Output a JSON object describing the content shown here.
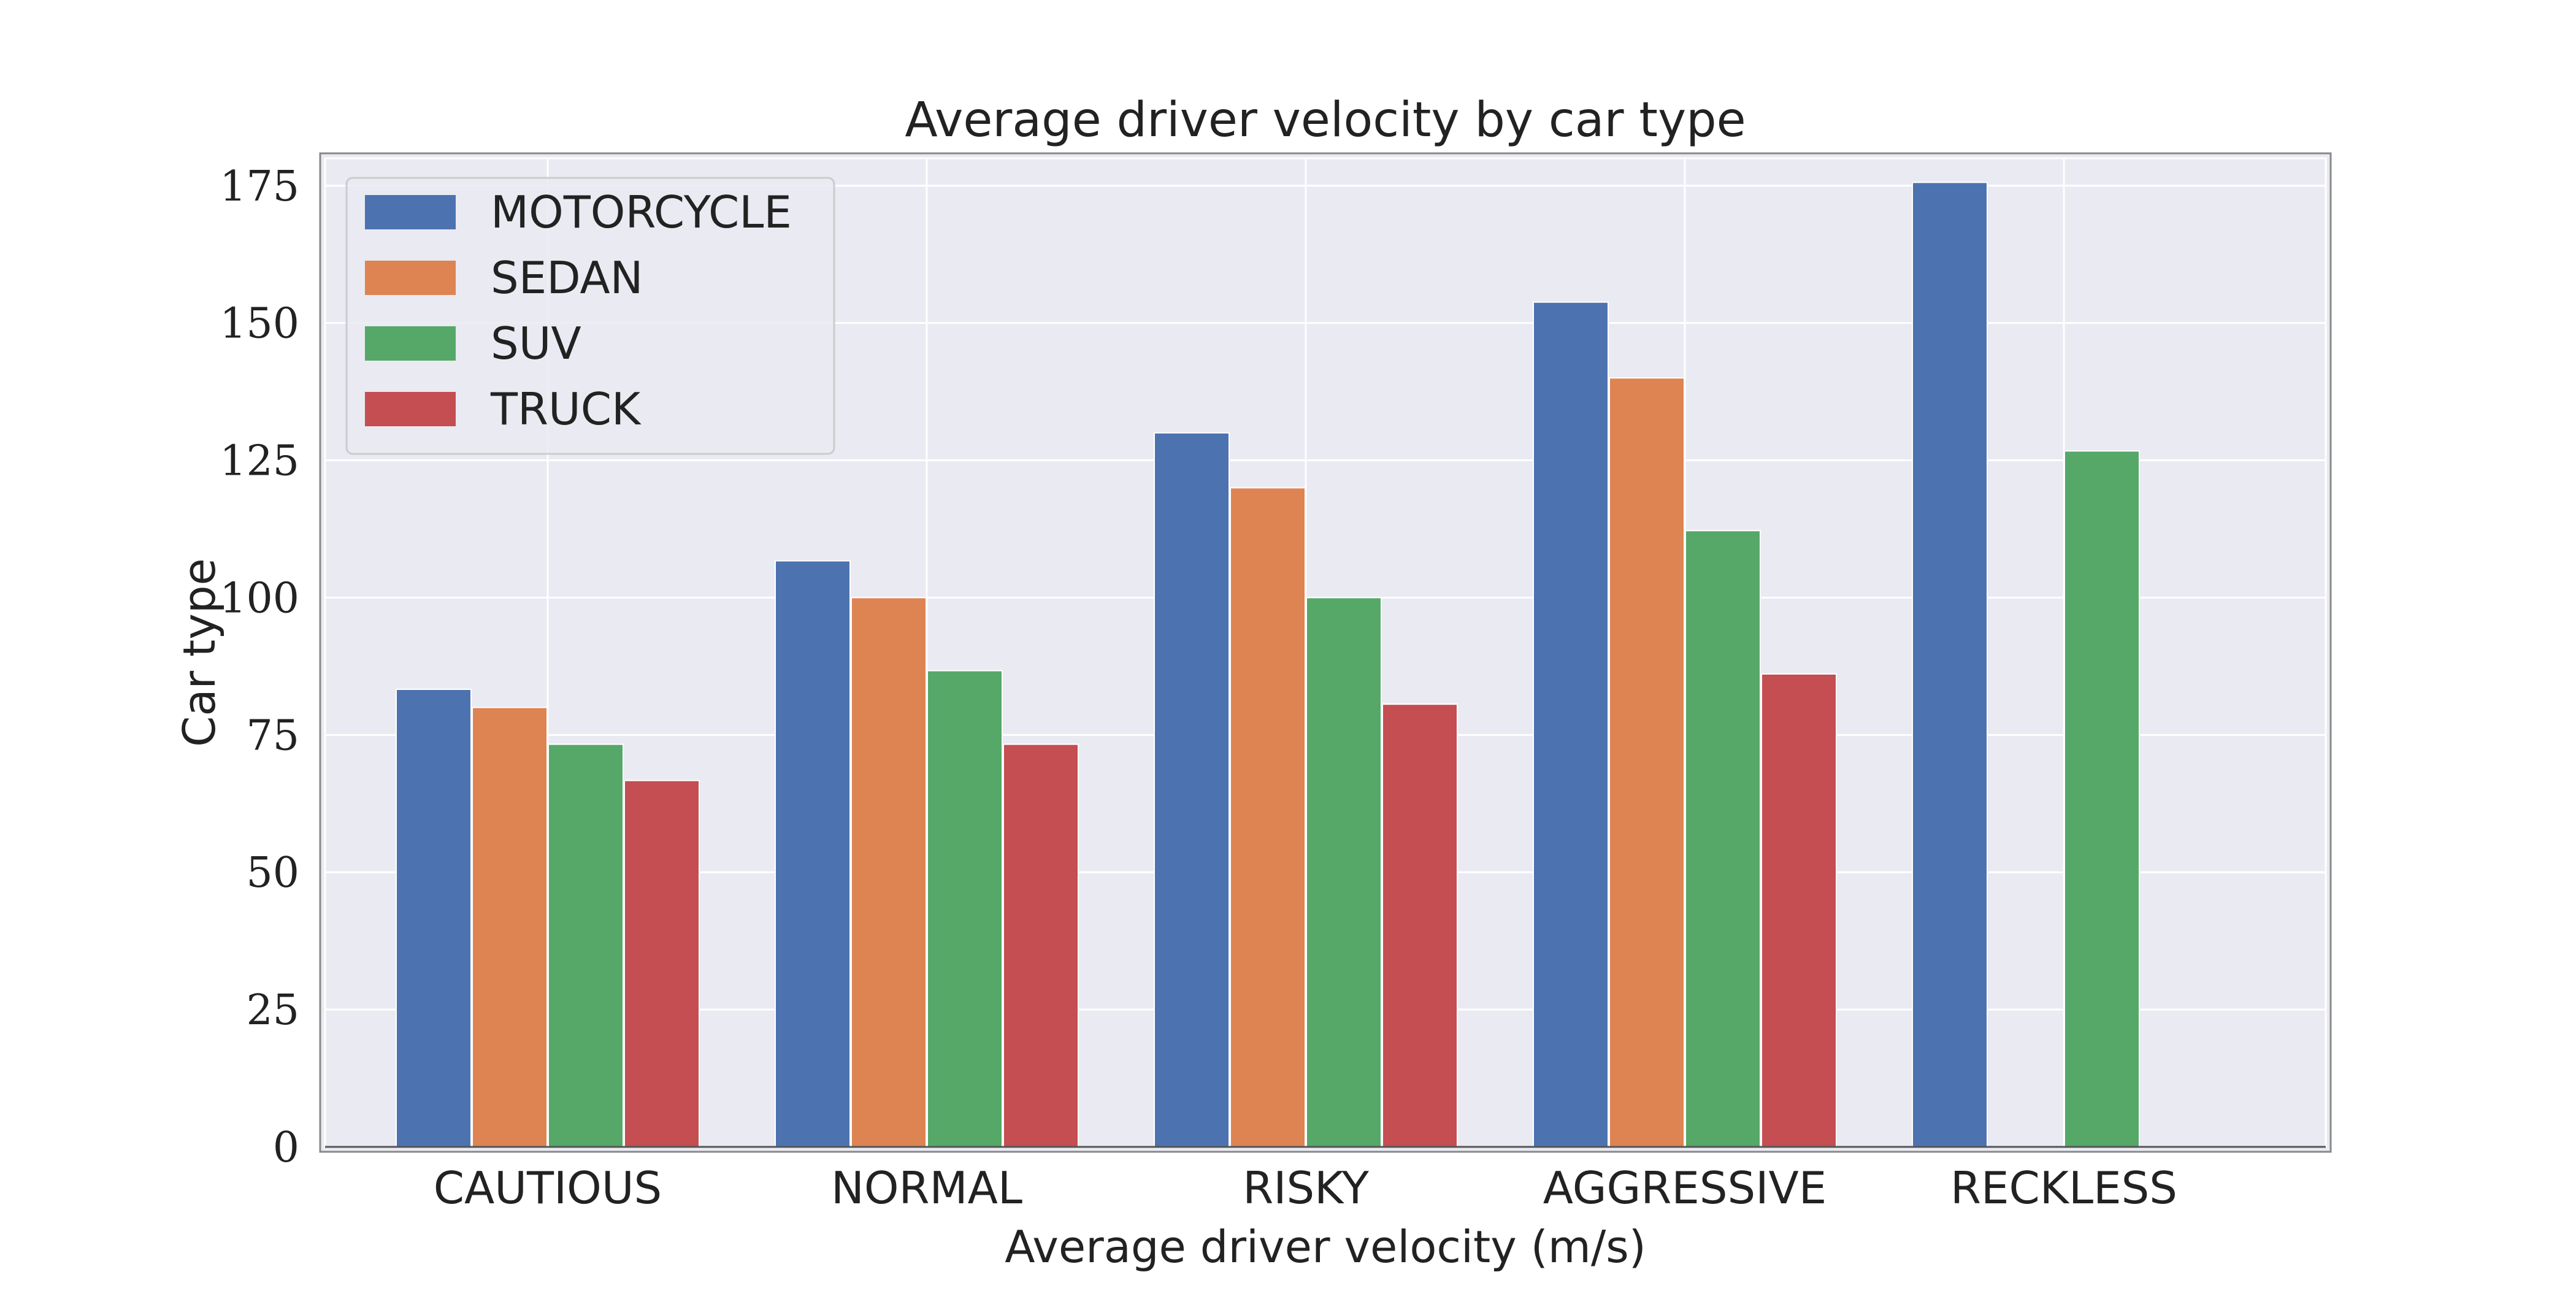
{
  "chart_data": {
    "type": "bar",
    "title": "Average driver velocity by car type",
    "xlabel": "Average driver velocity (m/s)",
    "ylabel": "Car type",
    "categories": [
      "CAUTIOUS",
      "NORMAL",
      "RISKY",
      "AGGRESSIVE",
      "RECKLESS"
    ],
    "series": [
      {
        "name": "MOTORCYCLE",
        "color": "#4c72b0",
        "values": [
          83.3,
          106.7,
          130,
          153.8,
          175.6
        ]
      },
      {
        "name": "SEDAN",
        "color": "#dd8452",
        "values": [
          80,
          100,
          120,
          140,
          null
        ]
      },
      {
        "name": "SUV",
        "color": "#55a868",
        "values": [
          73.3,
          86.7,
          100,
          112.2,
          126.7
        ]
      },
      {
        "name": "TRUCK",
        "color": "#c44e52",
        "values": [
          66.7,
          73.3,
          80.6,
          86.1,
          null
        ]
      }
    ],
    "ylim": [
      0,
      180
    ],
    "yticks": [
      0,
      25,
      50,
      75,
      100,
      125,
      150,
      175
    ],
    "grid": true,
    "legend_position": "upper-left",
    "background_color": "#eaeaf2",
    "grid_color": "#ffffff"
  }
}
